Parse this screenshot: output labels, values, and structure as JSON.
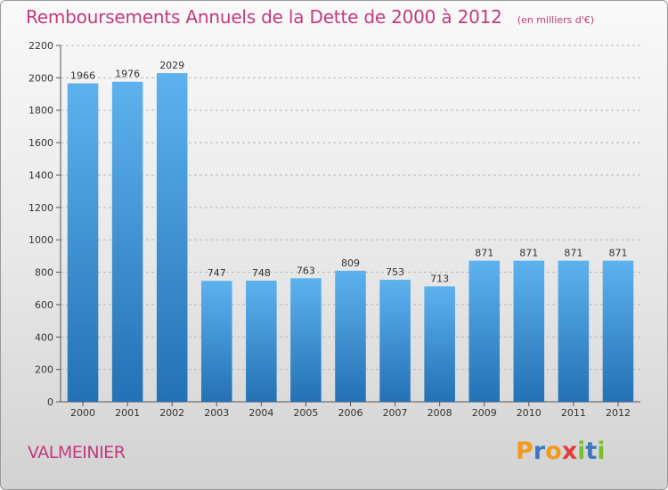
{
  "header": {
    "title": "Remboursements Annuels de la Dette de 2000 à 2012",
    "subtitle": "(en milliers d'€)"
  },
  "footer": {
    "commune": "VALMEINIER",
    "logo": {
      "letters": [
        "P",
        "r",
        "o",
        "x",
        "i",
        "t",
        "i"
      ],
      "colors": [
        "#f29a1e",
        "#3f78c2",
        "#f29a1e",
        "#e23c3c",
        "#7cbf2e",
        "#3f78c2",
        "#7cbf2e"
      ]
    }
  },
  "colors": {
    "bar_top": "#5db2ee",
    "bar_bottom": "#2471b5",
    "text": "#333333",
    "grid": "#b8b8b8"
  },
  "chart_data": {
    "type": "bar",
    "title": "Remboursements Annuels de la Dette de 2000 à 2012",
    "subtitle": "(en milliers d'€)",
    "categories": [
      "2000",
      "2001",
      "2002",
      "2003",
      "2004",
      "2005",
      "2006",
      "2007",
      "2008",
      "2009",
      "2010",
      "2011",
      "2012"
    ],
    "values": [
      1966,
      1976,
      2029,
      747,
      748,
      763,
      809,
      753,
      713,
      871,
      871,
      871,
      871
    ],
    "ylim": [
      0,
      2200
    ],
    "yticks": [
      0,
      200,
      400,
      600,
      800,
      1000,
      1200,
      1400,
      1600,
      1800,
      2000,
      2200
    ],
    "grid": "horizontal dashed",
    "data_labels": true
  }
}
